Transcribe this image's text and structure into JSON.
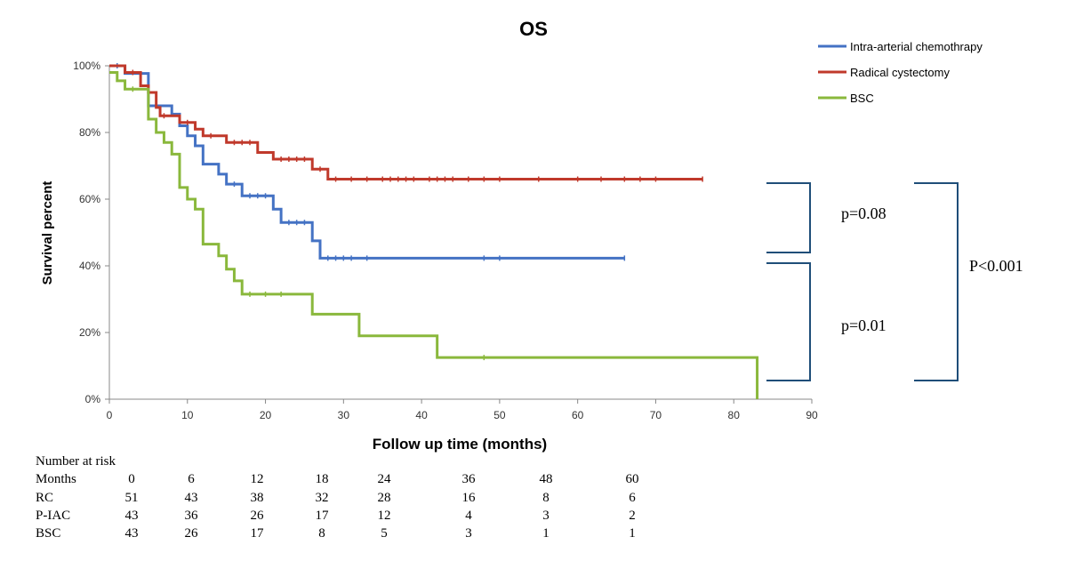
{
  "chart_data": {
    "type": "line",
    "title": "OS",
    "xlabel": "Follow up time (months)",
    "ylabel": "Survival percent",
    "xlim": [
      0,
      90
    ],
    "ylim": [
      0,
      100
    ],
    "x_ticks": [
      0,
      10,
      20,
      30,
      40,
      50,
      60,
      70,
      80,
      90
    ],
    "y_ticks": [
      0,
      20,
      40,
      60,
      80,
      100
    ],
    "y_tick_labels": [
      "0%",
      "20%",
      "40%",
      "60%",
      "80%",
      "100%"
    ],
    "legend_position": "top-right",
    "series": [
      {
        "name": "Intra-arterial chemothrapy",
        "color": "#4472c4",
        "steps": [
          [
            0,
            100
          ],
          [
            2,
            97.7
          ],
          [
            5,
            88
          ],
          [
            8,
            85.5
          ],
          [
            9,
            82
          ],
          [
            10,
            79
          ],
          [
            11,
            76
          ],
          [
            12,
            70.5
          ],
          [
            14,
            67.5
          ],
          [
            15,
            64.5
          ],
          [
            17,
            61
          ],
          [
            21,
            57
          ],
          [
            22,
            53
          ],
          [
            26,
            47.5
          ],
          [
            27,
            42.3
          ],
          [
            66,
            42.3
          ]
        ],
        "censored": [
          1,
          6,
          16,
          18,
          19,
          20,
          23,
          24,
          25,
          28,
          29,
          30,
          31,
          33,
          48,
          50,
          66
        ]
      },
      {
        "name": "Radical cystectomy",
        "color": "#c0392b",
        "steps": [
          [
            0,
            100
          ],
          [
            2,
            98
          ],
          [
            4,
            94
          ],
          [
            5,
            92
          ],
          [
            6,
            87.5
          ],
          [
            6.5,
            85
          ],
          [
            9,
            83
          ],
          [
            11,
            81
          ],
          [
            12,
            79
          ],
          [
            15,
            77
          ],
          [
            19,
            74
          ],
          [
            21,
            72
          ],
          [
            26,
            69
          ],
          [
            28,
            66
          ],
          [
            76,
            66
          ]
        ],
        "censored": [
          3,
          7,
          10,
          13,
          16,
          17,
          18,
          22,
          23,
          24,
          25,
          27,
          29,
          31,
          33,
          35,
          36,
          37,
          38,
          39,
          41,
          42,
          43,
          44,
          46,
          48,
          50,
          55,
          60,
          63,
          66,
          68,
          70,
          76
        ]
      },
      {
        "name": "BSC",
        "color": "#8ab83c",
        "steps": [
          [
            0,
            98
          ],
          [
            1,
            95.5
          ],
          [
            2,
            93
          ],
          [
            5,
            84
          ],
          [
            6,
            80
          ],
          [
            7,
            77
          ],
          [
            8,
            73.5
          ],
          [
            9,
            63.5
          ],
          [
            10,
            60
          ],
          [
            11,
            57
          ],
          [
            12,
            46.5
          ],
          [
            14,
            43
          ],
          [
            15,
            39
          ],
          [
            16,
            35.5
          ],
          [
            17,
            31.5
          ],
          [
            26,
            25.5
          ],
          [
            32,
            19
          ],
          [
            42,
            12.5
          ],
          [
            83,
            12.5
          ],
          [
            83,
            0
          ]
        ],
        "censored": [
          3,
          18,
          20,
          22,
          48
        ]
      }
    ],
    "annotations": [
      {
        "text": "p=0.08",
        "between": [
          "Radical cystectomy",
          "Intra-arterial chemothrapy"
        ]
      },
      {
        "text": "p=0.01",
        "between": [
          "Intra-arterial chemothrapy",
          "BSC"
        ]
      },
      {
        "text": "P<0.001",
        "between": [
          "Radical cystectomy",
          "BSC"
        ]
      }
    ],
    "risk_table": {
      "title": "Number at risk",
      "header": "Months",
      "months": [
        "0",
        "6",
        "12",
        "18",
        "24",
        "36",
        "48",
        "60"
      ],
      "rows": [
        {
          "label": "RC",
          "values": [
            "51",
            "43",
            "38",
            "32",
            "28",
            "16",
            "8",
            "6"
          ]
        },
        {
          "label": "P-IAC",
          "values": [
            "43",
            "36",
            "26",
            "17",
            "12",
            "4",
            "3",
            "2"
          ]
        },
        {
          "label": "BSC",
          "values": [
            "43",
            "26",
            "17",
            "8",
            "5",
            "3",
            "1",
            "1"
          ]
        }
      ]
    }
  }
}
